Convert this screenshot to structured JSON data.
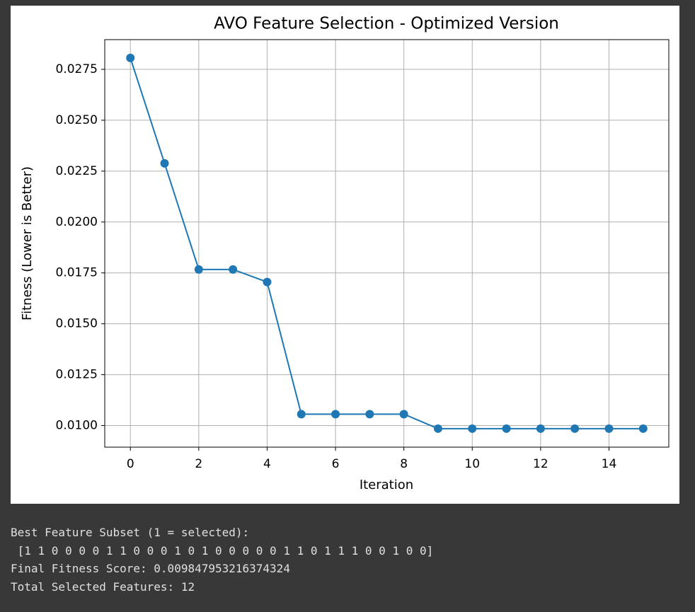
{
  "chart_data": {
    "type": "line",
    "title": "AVO Feature Selection - Optimized Version",
    "xlabel": "Iteration",
    "ylabel": "Fitness (Lower is Better)",
    "x": [
      0,
      1,
      2,
      3,
      4,
      5,
      6,
      7,
      8,
      9,
      10,
      11,
      12,
      13,
      14,
      15
    ],
    "series": [
      {
        "color": "#1f77b4",
        "values": [
          0.02806,
          0.02288,
          0.01767,
          0.01767,
          0.01705,
          0.01056,
          0.01056,
          0.01056,
          0.01056,
          0.00985,
          0.00985,
          0.00985,
          0.00985,
          0.00985,
          0.00985,
          0.00985
        ]
      }
    ],
    "xlim": [
      -0.75,
      15.75
    ],
    "xticks": [
      0,
      2,
      4,
      6,
      8,
      10,
      12,
      14
    ],
    "ylim": [
      0.00894,
      0.02896
    ],
    "yticks": [
      {
        "value": 0.01,
        "label": "0.0100"
      },
      0.0125,
      {
        "value": 0.015,
        "label": "0.0150"
      },
      0.0175,
      {
        "value": 0.02,
        "label": "0.0200"
      },
      0.0225,
      {
        "value": 0.025,
        "label": "0.0250"
      },
      0.0275
    ],
    "grid": true
  },
  "output": {
    "lines": [
      "Best Feature Subset (1 = selected):",
      " [1 1 0 0 0 0 1 1 0 0 0 1 0 1 0 0 0 0 0 1 1 0 1 1 1 0 0 1 0 0]",
      "Final Fitness Score: 0.009847953216374324",
      "Total Selected Features: 12"
    ]
  }
}
